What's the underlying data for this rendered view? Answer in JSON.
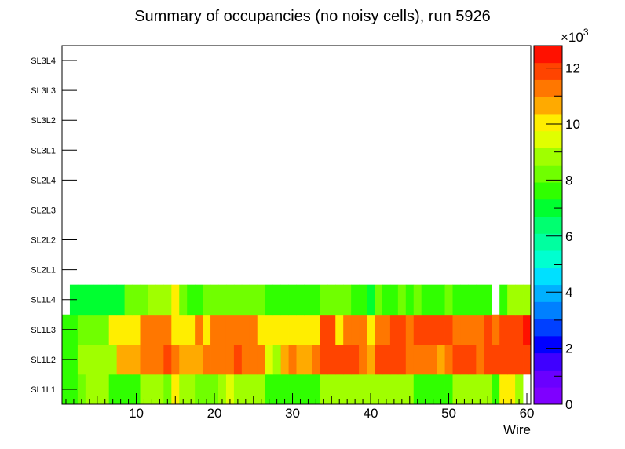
{
  "chart_data": {
    "type": "heatmap",
    "title": "Summary of occupancies (no noisy cells), run 5926",
    "xlabel": "Wire",
    "ylabel": "",
    "xlim": [
      0.5,
      60.5
    ],
    "x_ticks": [
      10,
      20,
      30,
      40,
      50,
      60
    ],
    "x_tick_labels": [
      "10",
      "20",
      "30",
      "40",
      "50",
      "60"
    ],
    "y_categories": [
      "SL1L1",
      "SL1L2",
      "SL1L3",
      "SL1L4",
      "SL2L1",
      "SL2L2",
      "SL2L3",
      "SL2L4",
      "SL3L1",
      "SL3L2",
      "SL3L3",
      "SL3L4"
    ],
    "z_range": [
      0,
      12800
    ],
    "z_ticks": [
      0,
      2,
      4,
      6,
      8,
      10,
      12
    ],
    "z_tick_labels": [
      "0",
      "2",
      "4",
      "6",
      "8",
      "10",
      "12"
    ],
    "z_exponent_label": "×10",
    "z_exponent_power": "3",
    "z_palette": [
      "#7f00ff",
      "#6a00ff",
      "#3f00ff",
      "#0000ff",
      "#0040ff",
      "#0080ff",
      "#00b0ff",
      "#00e0ff",
      "#00ffd0",
      "#00ffa0",
      "#00ff70",
      "#00ff30",
      "#30ff00",
      "#70ff00",
      "#a0ff00",
      "#e0ff00",
      "#ffee00",
      "#ffaa00",
      "#ff7700",
      "#ff4400",
      "#ff1100"
    ],
    "z_values": [
      [
        7400,
        7400,
        8300,
        8700,
        9100,
        9100,
        7600,
        7600,
        7600,
        7600,
        9100,
        9100,
        9100,
        8300,
        10000,
        9100,
        9100,
        8300,
        8300,
        8300,
        9100,
        9600,
        8700,
        8700,
        8700,
        8700,
        7600,
        7400,
        7600,
        7600,
        7600,
        7600,
        7600,
        8700,
        8700,
        8700,
        8700,
        8700,
        8700,
        8700,
        8700,
        8700,
        8700,
        9100,
        8700,
        7600,
        7600,
        7600,
        7600,
        7600,
        8700,
        8700,
        8700,
        8700,
        8700,
        7600,
        10000,
        10000,
        8700,
        0
      ],
      [
        7600,
        7600,
        8700,
        8700,
        8700,
        8700,
        9100,
        10500,
        10500,
        10500,
        11300,
        11300,
        11300,
        11700,
        11300,
        10500,
        10500,
        10500,
        11300,
        11300,
        11300,
        11300,
        11700,
        11300,
        11300,
        11300,
        9600,
        8700,
        10500,
        11300,
        10500,
        10500,
        11300,
        11700,
        11700,
        11700,
        11700,
        11700,
        11300,
        10500,
        11700,
        11700,
        11700,
        11700,
        11300,
        11300,
        11300,
        11300,
        10500,
        11300,
        11700,
        11700,
        11700,
        11300,
        11700,
        11700,
        11700,
        11700,
        11700,
        11700
      ],
      [
        7400,
        7400,
        8300,
        8300,
        8300,
        8300,
        10000,
        10000,
        10000,
        10000,
        11300,
        11300,
        11300,
        11300,
        10000,
        10000,
        10000,
        11300,
        10000,
        11300,
        11300,
        11300,
        11300,
        11300,
        11300,
        10000,
        10000,
        10000,
        10000,
        10000,
        10000,
        10000,
        10000,
        11700,
        11700,
        10000,
        11300,
        11300,
        11300,
        10000,
        11300,
        11300,
        11700,
        11700,
        11300,
        11700,
        11700,
        11700,
        11700,
        11700,
        11300,
        11300,
        11300,
        11300,
        11700,
        11300,
        11700,
        11700,
        11700,
        12600
      ],
      [
        0,
        7200,
        7200,
        7200,
        6800,
        6800,
        6800,
        7200,
        8300,
        8300,
        8300,
        9100,
        9100,
        9100,
        10000,
        8300,
        7600,
        7600,
        8300,
        8300,
        8300,
        8300,
        8300,
        8300,
        8300,
        8300,
        7600,
        7600,
        7600,
        7600,
        7600,
        7600,
        7600,
        8300,
        8300,
        8300,
        8300,
        7600,
        7600,
        7200,
        8300,
        7600,
        7600,
        8300,
        7600,
        8300,
        7600,
        7600,
        7600,
        8300,
        7600,
        7600,
        7600,
        7600,
        7600,
        0,
        7600,
        8700,
        8700,
        8700
      ],
      [],
      [],
      [],
      [],
      [],
      [],
      [],
      []
    ]
  }
}
